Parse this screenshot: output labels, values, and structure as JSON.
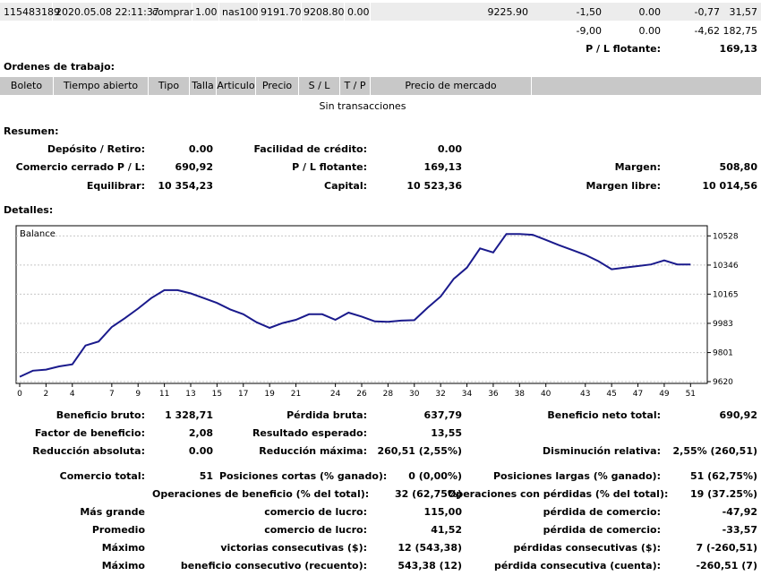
{
  "deal_row": {
    "ticket": "115483189",
    "time": "2020.05.08 22:11:37",
    "type": "comprar",
    "size": "1.00",
    "item": "nas100",
    "price": "9191.70",
    "sl": "9208.80",
    "tp": "0.00",
    "market_price": "9225.90",
    "c1": "-1,50",
    "c2": "0.00",
    "c3": "-0,77",
    "c4": "31,57"
  },
  "totals_row": {
    "c1": "-9,00",
    "c2": "0.00",
    "c3": "-4,62",
    "c4": "182,75"
  },
  "floating": {
    "label": "P / L flotante:",
    "value": "169,13"
  },
  "work_orders": {
    "title": "Ordenes de trabajo:",
    "columns": [
      "Boleto",
      "Tiempo abierto",
      "Tipo",
      "Talla",
      "Articulo",
      "Precio",
      "S / L",
      "T / P",
      "Precio de mercado"
    ],
    "empty": "Sin transacciones"
  },
  "summary": {
    "title": "Resumen:",
    "deposit_label": "Depósito / Retiro:",
    "deposit_value": "0.00",
    "credit_label": "Facilidad de crédito:",
    "credit_value": "0.00",
    "closed_label": "Comercio cerrado P / L:",
    "closed_value": "690,92",
    "floating_label": "P / L flotante:",
    "floating_value": "169,13",
    "margin_label": "Margen:",
    "margin_value": "508,80",
    "balance_label": "Equilibrar:",
    "balance_value": "10 354,23",
    "capital_label": "Capital:",
    "capital_value": "10 523,36",
    "free_margin_label": "Margen libre:",
    "free_margin_value": "10 014,56"
  },
  "details": {
    "title": "Detalles:"
  },
  "chart_data": {
    "type": "line",
    "legend": "Balance",
    "x_ticks": [
      0,
      2,
      4,
      7,
      9,
      11,
      13,
      15,
      17,
      19,
      21,
      24,
      26,
      28,
      30,
      32,
      34,
      36,
      38,
      40,
      43,
      45,
      47,
      49,
      51
    ],
    "y_ticks": [
      9620,
      9801,
      9983,
      10165,
      10346,
      10528
    ],
    "xlim": [
      0,
      52
    ],
    "ylim": [
      9620,
      10580
    ],
    "series": [
      {
        "color": "#1a1a8c",
        "x": [
          0,
          1,
          2,
          3,
          4,
          5,
          6,
          7,
          8,
          9,
          10,
          11,
          12,
          13,
          14,
          15,
          16,
          17,
          18,
          19,
          20,
          21,
          22,
          23,
          24,
          25,
          26,
          27,
          28,
          29,
          30,
          31,
          32,
          33,
          34,
          35,
          36,
          37,
          38,
          39,
          40,
          41,
          42,
          43,
          44,
          45,
          46,
          47,
          48,
          49,
          50,
          51
        ],
        "y": [
          9650,
          9688,
          9695,
          9715,
          9728,
          9845,
          9870,
          9960,
          10015,
          10075,
          10140,
          10190,
          10190,
          10170,
          10140,
          10110,
          10070,
          10040,
          9990,
          9955,
          9985,
          10005,
          10040,
          10040,
          10005,
          10050,
          10025,
          9995,
          9993,
          10000,
          10003,
          10080,
          10150,
          10260,
          10330,
          10450,
          10425,
          10540,
          10540,
          10535,
          10503,
          10470,
          10440,
          10410,
          10370,
          10320,
          10330,
          10340,
          10350,
          10375,
          10350,
          10350
        ]
      }
    ]
  },
  "stats": [
    {
      "l1": "Beneficio bruto:",
      "v1": "1 328,71",
      "l2": "Pérdida bruta:",
      "v2": "637,79",
      "l3": "Beneficio neto total:",
      "v3": "690,92"
    },
    {
      "l1": "Factor de beneficio:",
      "v1": "2,08",
      "l2": "Resultado esperado:",
      "v2": "13,55",
      "l3": "",
      "v3": ""
    },
    {
      "l1": "Reducción absoluta:",
      "v1": "0.00",
      "l2": "Reducción máxima:",
      "v2": "260,51 (2,55%)",
      "l3": "Disminución relativa:",
      "v3": "2,55% (260,51)"
    }
  ],
  "trades": {
    "total_label": "Comercio total:",
    "total_value": "51",
    "short_label": "Posiciones cortas (% ganado):",
    "short_value": "0 (0,00%)",
    "long_label": "Posiciones largas (% ganado):",
    "long_value": "51 (62,75%)",
    "profit_ops_label": "Operaciones de beneficio (% del total):",
    "profit_ops_value": "32 (62,75%)",
    "loss_ops_label": "Operaciones con pérdidas (% del total):",
    "loss_ops_value": "19 (37.25%)",
    "rows": [
      {
        "c0": "Más grande",
        "l1": "comercio de lucro:",
        "v1": "115,00",
        "l2": "pérdida de comercio:",
        "v2": "-47,92"
      },
      {
        "c0": "Promedio",
        "l1": "comercio de lucro:",
        "v1": "41,52",
        "l2": "pérdida de comercio:",
        "v2": "-33,57"
      },
      {
        "c0": "Máximo",
        "l1": "victorias consecutivas ($):",
        "v1": "12 (543,38)",
        "l2": "pérdidas consecutivas ($):",
        "v2": "7 (-260,51)"
      },
      {
        "c0": "Máximo",
        "l1": "beneficio consecutivo (recuento):",
        "v1": "543,38 (12)",
        "l2": "pérdida consecutiva (cuenta):",
        "v2": "-260,51 (7)"
      }
    ]
  }
}
